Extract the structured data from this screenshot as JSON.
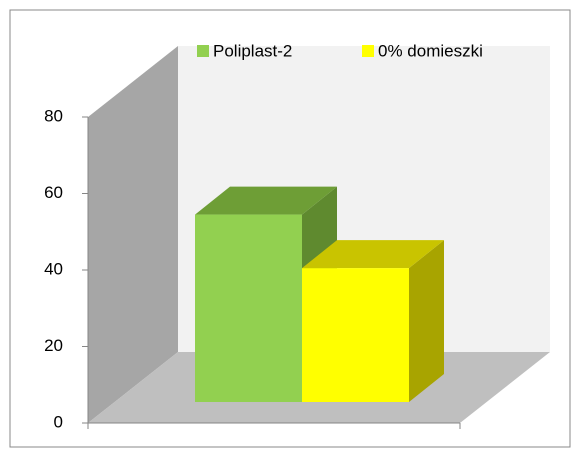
{
  "chart_data": {
    "type": "bar3d",
    "categories": [
      null
    ],
    "series": [
      {
        "name": "Poliplast-2",
        "color": "#92d050",
        "side": "#5f8a2f",
        "top": "#6e9e36",
        "values": [
          49
        ]
      },
      {
        "name": "0% domieszki",
        "color": "#ffff00",
        "side": "#a8a400",
        "top": "#c9c400",
        "values": [
          35
        ]
      }
    ],
    "ylim": [
      0,
      80
    ],
    "yticks": [
      0,
      20,
      40,
      60,
      80
    ]
  }
}
